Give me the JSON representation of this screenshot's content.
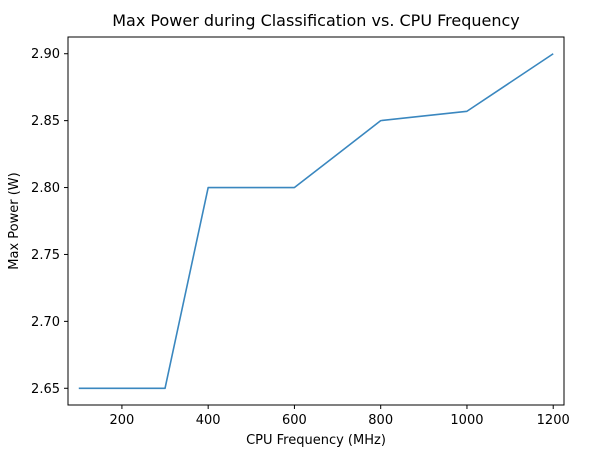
{
  "chart_data": {
    "type": "line",
    "title": "Max Power during Classification vs. CPU Frequency",
    "xlabel": "CPU Frequency (MHz)",
    "ylabel": "Max Power (W)",
    "xlim": [
      75,
      1225
    ],
    "ylim": [
      2.6375,
      2.9125
    ],
    "xticks": [
      200,
      400,
      600,
      800,
      1000,
      1200
    ],
    "xtick_labels": [
      "200",
      "400",
      "600",
      "800",
      "1000",
      "1200"
    ],
    "yticks": [
      2.65,
      2.7,
      2.75,
      2.8,
      2.85,
      2.9
    ],
    "ytick_labels": [
      "2.65",
      "2.70",
      "2.75",
      "2.80",
      "2.85",
      "2.90"
    ],
    "grid": false,
    "series": [
      {
        "color": "#3a87bf",
        "x": [
          100,
          200,
          300,
          400,
          500,
          600,
          700,
          800,
          900,
          1000,
          1100,
          1200
        ],
        "y": [
          2.65,
          2.65,
          2.65,
          2.8,
          2.8,
          2.8,
          2.825,
          2.85,
          2.8535,
          2.857,
          2.8785,
          2.9
        ]
      }
    ]
  }
}
